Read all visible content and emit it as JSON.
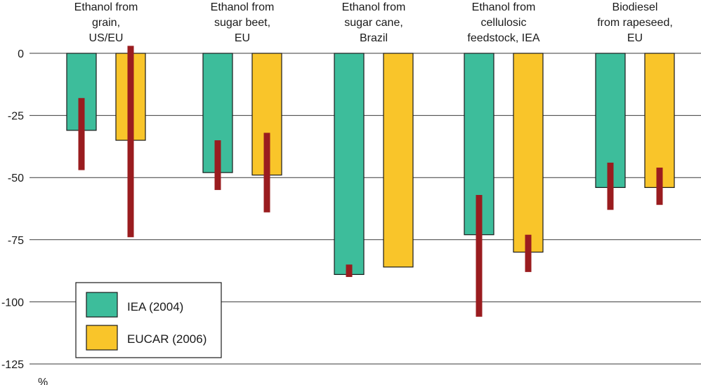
{
  "chart_data": {
    "type": "bar",
    "title": "",
    "xlabel": "",
    "ylabel": "%",
    "ylim": [
      -125,
      0
    ],
    "yticks": [
      "0",
      "-25",
      "-50",
      "-75",
      "-100",
      "-125"
    ],
    "ytick_values": [
      0,
      -25,
      -50,
      -75,
      -100,
      -125
    ],
    "grid": true,
    "legend_position": "bottom-left",
    "categories": [
      [
        "Ethanol from",
        "grain,",
        "US/EU"
      ],
      [
        "Ethanol from",
        "sugar beet,",
        "EU"
      ],
      [
        "Ethanol from",
        "sugar cane,",
        "Brazil"
      ],
      [
        "Ethanol from",
        "cellulosic",
        "feedstock, IEA"
      ],
      [
        "Biodiesel",
        "from rapeseed,",
        "EU"
      ]
    ],
    "series": [
      {
        "name": "IEA (2004)",
        "color": "#3dbd9b",
        "values": [
          -31,
          -48,
          -89,
          -73,
          -54
        ],
        "range_low": [
          -47,
          -55,
          -90,
          -106,
          -63
        ],
        "range_high": [
          -18,
          -35,
          -85,
          -57,
          -44
        ]
      },
      {
        "name": "EUCAR (2006)",
        "color": "#f9c52a",
        "values": [
          -35,
          -49,
          -86,
          -80,
          -54
        ],
        "range_low": [
          -74,
          -64,
          null,
          -88,
          -61
        ],
        "range_high": [
          3,
          -32,
          null,
          -73,
          -46
        ]
      }
    ],
    "error_bar_color": "#9a1c1f"
  }
}
